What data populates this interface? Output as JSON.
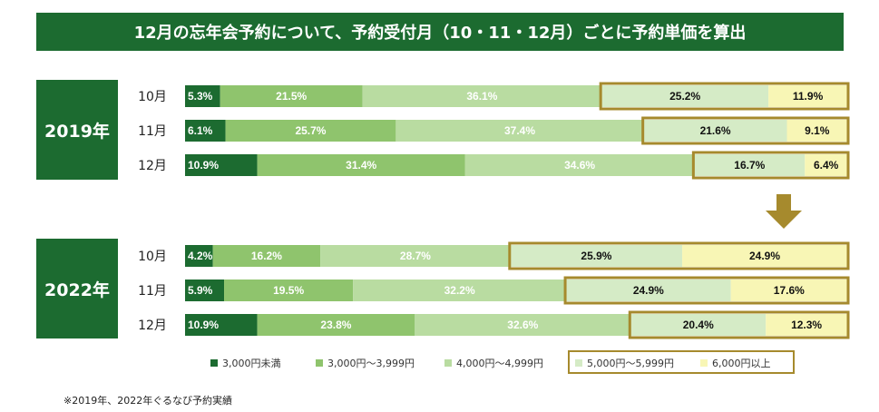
{
  "title": "12月の忘年会予約について、予約受付月（10・11・12月）ごとに予約単価を算出",
  "footnote": "※2019年、2022年ぐるなび予約実績",
  "colors": {
    "header": "#1c6b30",
    "highlight_border": "#a68a2d",
    "arrow": "#a68a2d"
  },
  "chart_data": {
    "type": "bar",
    "orientation": "horizontal",
    "stacked": true,
    "percent": true,
    "title": "12月の忘年会予約について、予約受付月（10・11・12月）ごとに予約単価を算出",
    "legend": [
      "3,000円未満",
      "3,000円～3,999円",
      "4,000円～4,999円",
      "5,000円～5,999円",
      "6,000円以上"
    ],
    "legend_colors": [
      "#1c6b30",
      "#8fc46d",
      "#b9dca1",
      "#d5ebc6",
      "#f8f6b5"
    ],
    "legend_text_colors": [
      "#ffffff",
      "#ffffff",
      "#ffffff",
      "#111111",
      "#111111"
    ],
    "highlighted_segments": [
      "5,000円～5,999円",
      "6,000円以上"
    ],
    "groups": [
      {
        "year": "2019年",
        "rows": [
          {
            "month": "10月",
            "values": [
              5.3,
              21.5,
              36.1,
              25.2,
              11.9
            ],
            "labels": [
              "5.3%",
              "21.5%",
              "36.1%",
              "25.2%",
              "11.9%"
            ]
          },
          {
            "month": "11月",
            "values": [
              6.1,
              25.7,
              37.4,
              21.6,
              9.1
            ],
            "labels": [
              "6.1%",
              "25.7%",
              "37.4%",
              "21.6%",
              "9.1%"
            ]
          },
          {
            "month": "12月",
            "values": [
              10.9,
              31.4,
              34.6,
              16.7,
              6.4
            ],
            "labels": [
              "10.9%",
              "31.4%",
              "34.6%",
              "16.7%",
              "6.4%"
            ]
          }
        ]
      },
      {
        "year": "2022年",
        "rows": [
          {
            "month": "10月",
            "values": [
              4.2,
              16.2,
              28.7,
              25.9,
              24.9
            ],
            "labels": [
              "4.2%",
              "16.2%",
              "28.7%",
              "25.9%",
              "24.9%"
            ]
          },
          {
            "month": "11月",
            "values": [
              5.9,
              19.5,
              32.2,
              24.9,
              17.6
            ],
            "labels": [
              "5.9%",
              "19.5%",
              "32.2%",
              "24.9%",
              "17.6%"
            ]
          },
          {
            "month": "12月",
            "values": [
              10.9,
              23.8,
              32.6,
              20.4,
              12.3
            ],
            "labels": [
              "10.9%",
              "23.8%",
              "32.6%",
              "20.4%",
              "12.3%"
            ]
          }
        ]
      }
    ]
  }
}
